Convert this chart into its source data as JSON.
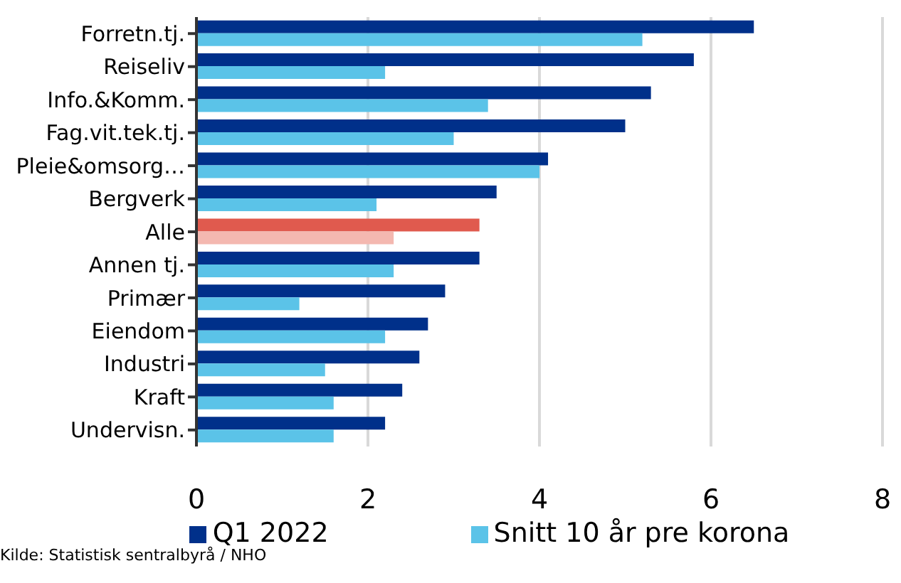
{
  "chart_data": {
    "type": "bar",
    "orientation": "horizontal",
    "categories": [
      "Forretn.tj.",
      "Reiseliv",
      "Info.&Komm.",
      "Fag.vit.tek.tj.",
      "Pleie&omsorg…",
      "Bergverk",
      "Alle",
      "Annen tj.",
      "Primær",
      "Eiendom",
      "Industri",
      "Kraft",
      "Undervisn."
    ],
    "series": [
      {
        "name": "Q1 2022",
        "color": "#00308a",
        "colors": [
          "#00308a",
          "#00308a",
          "#00308a",
          "#00308a",
          "#00308a",
          "#00308a",
          "#e05a4e",
          "#00308a",
          "#00308a",
          "#00308a",
          "#00308a",
          "#00308a",
          "#00308a"
        ],
        "values": [
          6.5,
          5.8,
          5.3,
          5.0,
          4.1,
          3.5,
          3.3,
          3.3,
          2.9,
          2.7,
          2.6,
          2.4,
          2.2
        ]
      },
      {
        "name": "Snitt 10 år pre korona",
        "color": "#5bc3e8",
        "colors": [
          "#5bc3e8",
          "#5bc3e8",
          "#5bc3e8",
          "#5bc3e8",
          "#5bc3e8",
          "#5bc3e8",
          "#f4b8b0",
          "#5bc3e8",
          "#5bc3e8",
          "#5bc3e8",
          "#5bc3e8",
          "#5bc3e8",
          "#5bc3e8"
        ],
        "values": [
          5.2,
          2.2,
          3.4,
          3.0,
          4.0,
          2.1,
          2.3,
          2.3,
          1.2,
          2.2,
          1.5,
          1.6,
          1.6
        ]
      }
    ],
    "xlim": [
      0,
      8
    ],
    "xticks": [
      0,
      2,
      4,
      6,
      8
    ],
    "grid": "x",
    "legend": "bottom",
    "annotations": [
      "Kilde: Statistisk sentralbyrå / NHO"
    ]
  }
}
